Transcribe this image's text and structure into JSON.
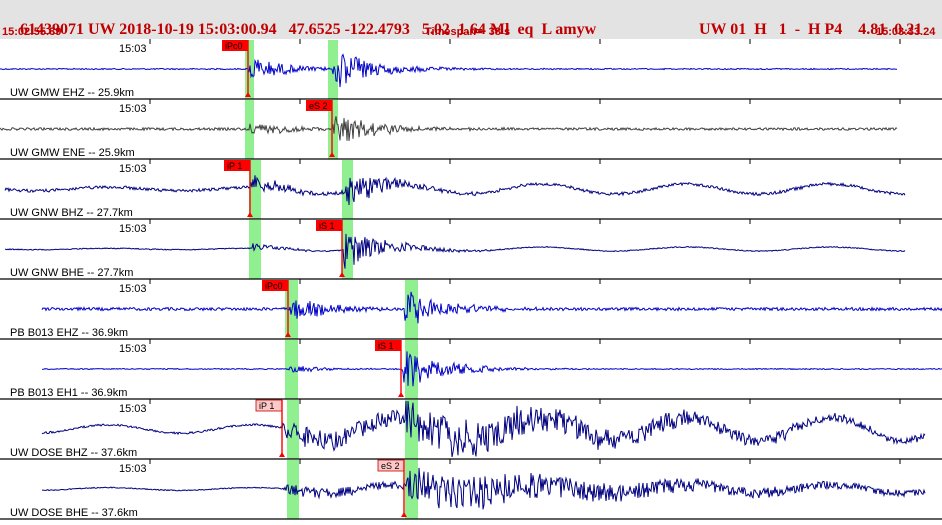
{
  "header": {
    "event_line": "61439071 UW 2018-10-19 15:03:00.94   47.6525 -122.4793   5.02  1.64 Ml  eq  L amyw",
    "channel_info": "UW 01  H   1  -  H P4    4.81  0.21",
    "start_time": "15:02:55.39",
    "timespan": "Timespan=  38 s",
    "end_time": "15:03:33.24"
  },
  "colors": {
    "header_text": "#c00000",
    "header_bg": "#e3e3e3",
    "pick_red": "#ff0000",
    "pick_pink": "#ffc8c8",
    "highlight_green": "#90f090",
    "trace_blue": "#0000c8",
    "trace_gray": "#404040",
    "trace_navy": "#000080"
  },
  "tick_label": "15:03",
  "traces": [
    {
      "label": "UW GMW EHZ -- 25.9km",
      "color": "#0000c8",
      "pick": {
        "label": "iPc0",
        "style": "red"
      },
      "pick2": {
        "label": null
      }
    },
    {
      "label": "UW GMW ENE -- 25.9km",
      "color": "#404040",
      "pick": {
        "label": "eS 2",
        "style": "red"
      },
      "pick2": {
        "label": null
      }
    },
    {
      "label": "UW GNW BHZ -- 27.7km",
      "color": "#000080",
      "pick": {
        "label": "iP 1",
        "style": "red"
      },
      "pick2": {
        "label": null
      }
    },
    {
      "label": "UW GNW BHE -- 27.7km",
      "color": "#000080",
      "pick": {
        "label": "iS 1",
        "style": "red"
      },
      "pick2": {
        "label": null
      }
    },
    {
      "label": "PB B013 EHZ -- 36.9km",
      "color": "#0000c8",
      "pick": {
        "label": "iPc0",
        "style": "red"
      },
      "pick2": {
        "label": null
      }
    },
    {
      "label": "PB B013 EH1 -- 36.9km",
      "color": "#0000c8",
      "pick": {
        "label": "iS 1",
        "style": "red"
      },
      "pick2": {
        "label": null
      }
    },
    {
      "label": "UW DOSE BHZ -- 37.6km",
      "color": "#000080",
      "pick": {
        "label": "iP 1",
        "style": "pink"
      },
      "pick2": {
        "label": null
      }
    },
    {
      "label": "UW DOSE BHE -- 37.6km",
      "color": "#000080",
      "pick": {
        "label": "eS 2",
        "style": "pink"
      },
      "pick2": {
        "label": null
      }
    }
  ]
}
